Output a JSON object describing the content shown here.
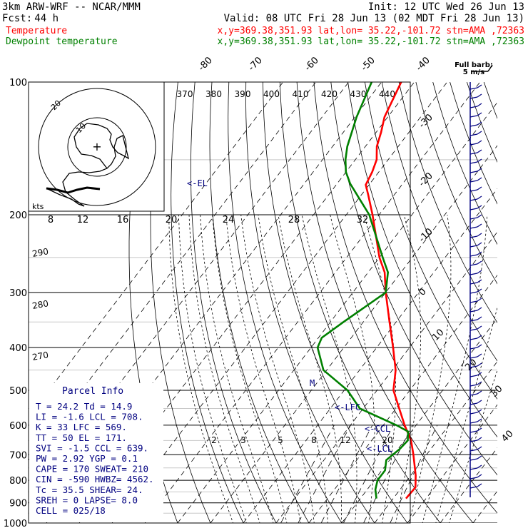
{
  "header": {
    "model": "3km ARW-WRF -- NCAR/MMM",
    "init": "Init: 12 UTC Wed 26 Jun 13",
    "fcst_label": "Fcst:",
    "fcst_value": "44 h",
    "valid": "Valid: 08 UTC Fri 28 Jun 13 (02 MDT Fri 28 Jun 13)",
    "temp_name": "Temperature",
    "dew_name": "Dewpoint temperature",
    "location": "x,y=369.38,351.93   lat,lon= 35.22,-101.72   stn=AMA ,72363"
  },
  "colors": {
    "temperature": "#ff0000",
    "dewpoint": "#008000",
    "parcel_info": "#000080",
    "grid": "#000000",
    "guide": "#c0c0c0"
  },
  "hodograph": {
    "units": "kts",
    "ring_labels": [
      "10",
      "20"
    ],
    "center_symbol": "+"
  },
  "barbs": {
    "key_line1": "Full barb:",
    "key_line2": "5 m/s"
  },
  "parcel_info": {
    "title": "Parcel Info",
    "lines": [
      "T    =  24.2  Td  =  14.9",
      "LI   =  -1.6  LCL =  708.",
      "K    =    33  LFC =  569.",
      "TT   =    50  EL  =  171.",
      "SVI  =  -1.5  CCL =  639.",
      "PW   =  2.92  YGP =   0.1",
      "CAPE =   170  SWEAT=  210",
      "CIN  =  -590  HWBZ= 4562.",
      "Tc   =  35.5  SHEAR=  24.",
      "SREH =     0  LAPSE=  8.0",
      "CELL = 025/18"
    ]
  },
  "level_markers": {
    "el": "<-EL",
    "lfc": "<-LFC",
    "ccl": "<-CCL",
    "lcl": "<-LCL",
    "m": "M"
  },
  "chart_data": {
    "type": "line",
    "y_axis": "pressure (hPa)",
    "y_scale": "log, reversed",
    "ylim": [
      1000,
      100
    ],
    "pressure_ticks": [
      100,
      200,
      300,
      400,
      500,
      600,
      700,
      800,
      900,
      1000
    ],
    "isotherm_labels": [
      "-80",
      "-70",
      "-60",
      "-50",
      "-40",
      "-30",
      "-20",
      "-10",
      "0",
      "10",
      "20",
      "30",
      "40"
    ],
    "theta_labels": [
      "370",
      "380",
      "390",
      "400",
      "410",
      "420",
      "430",
      "440"
    ],
    "mixing_ratio_labels": [
      "2",
      "3",
      "5",
      "8",
      "12",
      "20"
    ],
    "thetae_labels": [
      "290",
      "280",
      "270"
    ],
    "hodo_speed_labels": [
      "8",
      "12",
      "16",
      "20",
      "24",
      "28",
      "32"
    ],
    "series": [
      {
        "name": "Temperature",
        "points": [
          {
            "p": 880,
            "t": 23.9
          },
          {
            "p": 860,
            "t": 24.0
          },
          {
            "p": 830,
            "t": 24.2
          },
          {
            "p": 780,
            "t": 21.5
          },
          {
            "p": 700,
            "t": 16.0
          },
          {
            "p": 650,
            "t": 12.0
          },
          {
            "p": 600,
            "t": 6.5
          },
          {
            "p": 550,
            "t": 1.0
          },
          {
            "p": 500,
            "t": -5.0
          },
          {
            "p": 450,
            "t": -9.0
          },
          {
            "p": 400,
            "t": -15.0
          },
          {
            "p": 350,
            "t": -22.0
          },
          {
            "p": 300,
            "t": -30.0
          },
          {
            "p": 270,
            "t": -35.0
          },
          {
            "p": 250,
            "t": -40.0
          },
          {
            "p": 200,
            "t": -52.0
          },
          {
            "p": 180,
            "t": -58.0
          },
          {
            "p": 171,
            "t": -61.0
          },
          {
            "p": 160,
            "t": -62.0
          },
          {
            "p": 150,
            "t": -63.5
          },
          {
            "p": 140,
            "t": -66.5
          },
          {
            "p": 130,
            "t": -68.5
          },
          {
            "p": 120,
            "t": -71.0
          },
          {
            "p": 100,
            "t": -74.0
          }
        ]
      },
      {
        "name": "Dewpoint temperature",
        "points": [
          {
            "p": 880,
            "t": 14.9
          },
          {
            "p": 840,
            "t": 12.5
          },
          {
            "p": 800,
            "t": 11.0
          },
          {
            "p": 760,
            "t": 11.0
          },
          {
            "p": 720,
            "t": 9.0
          },
          {
            "p": 680,
            "t": 10.5
          },
          {
            "p": 650,
            "t": 11.0
          },
          {
            "p": 620,
            "t": 9.0
          },
          {
            "p": 600,
            "t": 4.0
          },
          {
            "p": 550,
            "t": -11.0
          },
          {
            "p": 500,
            "t": -19.0
          },
          {
            "p": 450,
            "t": -31.0
          },
          {
            "p": 400,
            "t": -38.0
          },
          {
            "p": 380,
            "t": -39.0
          },
          {
            "p": 350,
            "t": -36.0
          },
          {
            "p": 300,
            "t": -30.0
          },
          {
            "p": 270,
            "t": -34.0
          },
          {
            "p": 250,
            "t": -39.0
          },
          {
            "p": 200,
            "t": -53.0
          },
          {
            "p": 170,
            "t": -66.0
          },
          {
            "p": 160,
            "t": -70.0
          },
          {
            "p": 150,
            "t": -73.0
          },
          {
            "p": 140,
            "t": -75.5
          },
          {
            "p": 120,
            "t": -79.5
          },
          {
            "p": 100,
            "t": -83.0
          }
        ]
      }
    ]
  }
}
